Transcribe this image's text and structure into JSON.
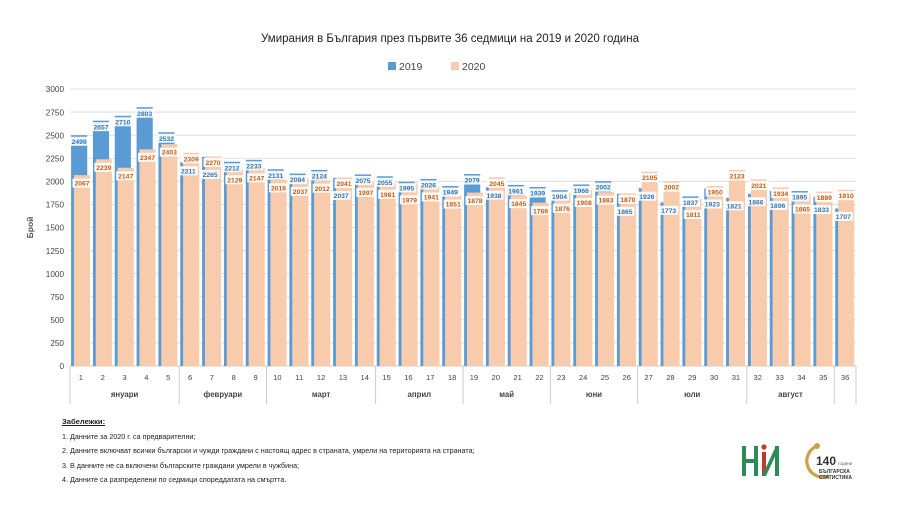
{
  "chart_data": {
    "type": "bar",
    "title": "Умирания в България през първите 36 седмици на 2019 и 2020 година",
    "ylabel": "Брой",
    "xlabel": "",
    "ylim": [
      0,
      3000
    ],
    "yticks": [
      0,
      250,
      500,
      750,
      1000,
      1250,
      1500,
      1750,
      2000,
      2250,
      2500,
      2750,
      3000
    ],
    "categories": [
      "1",
      "2",
      "3",
      "4",
      "5",
      "6",
      "7",
      "8",
      "9",
      "10",
      "11",
      "12",
      "13",
      "14",
      "15",
      "16",
      "17",
      "18",
      "19",
      "20",
      "21",
      "22",
      "23",
      "24",
      "25",
      "26",
      "27",
      "28",
      "29",
      "30",
      "31",
      "32",
      "33",
      "34",
      "35",
      "36"
    ],
    "series": [
      {
        "name": "2019",
        "color": "#5B9BD5",
        "values": [
          2499,
          2657,
          2710,
          2803,
          2532,
          2211,
          2265,
          2212,
          2233,
          2131,
          2084,
          2124,
          2037,
          2075,
          2055,
          1995,
          2026,
          1949,
          2079,
          1938,
          1961,
          1939,
          1904,
          1966,
          2002,
          1865,
          1926,
          1773,
          1837,
          1923,
          1821,
          1866,
          1896,
          1895,
          1833,
          1707
        ]
      },
      {
        "name": "2020",
        "color": "#F8CBAD",
        "values": [
          2067,
          2239,
          2147,
          2347,
          2403,
          2309,
          2270,
          2129,
          2147,
          2016,
          2037,
          2012,
          2041,
          1997,
          1981,
          1979,
          1941,
          1851,
          1878,
          2045,
          1845,
          1769,
          1876,
          1908,
          1883,
          1870,
          2105,
          2002,
          1811,
          1950,
          2123,
          2021,
          1934,
          1865,
          1889,
          1910
        ]
      }
    ],
    "months": [
      {
        "label": "януари",
        "start": 1,
        "end": 5
      },
      {
        "label": "февруари",
        "start": 6,
        "end": 9
      },
      {
        "label": "март",
        "start": 10,
        "end": 14
      },
      {
        "label": "април",
        "start": 15,
        "end": 18
      },
      {
        "label": "май",
        "start": 19,
        "end": 22
      },
      {
        "label": "юни",
        "start": 23,
        "end": 26
      },
      {
        "label": "юли",
        "start": 27,
        "end": 31
      },
      {
        "label": "август",
        "start": 32,
        "end": 35
      }
    ],
    "legend_position": "top-center",
    "grid": true
  },
  "notes": {
    "title": "Забележки:",
    "items": [
      "1. Данните за 2020 г. са предварителни;",
      "2. Данните включват всички български и чужди граждани с настоящ адрес в страната, умрели на територията на страната;",
      "3. В данните не са включени българските граждани умрели в чужбина;",
      "4. Данните са разпределени по седмици спореддатата на смъртта."
    ]
  },
  "logos": {
    "nsi_text": "НИ",
    "anniversary_number": "140",
    "anniversary_suffix": "години",
    "org_line1": "БЪЛГАРСКА",
    "org_line2": "СТАТИСТИКА"
  }
}
